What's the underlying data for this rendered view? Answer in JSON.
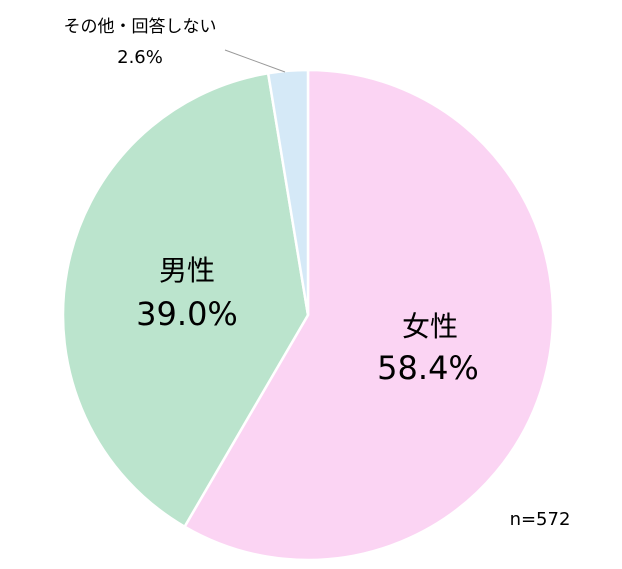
{
  "chart_data": {
    "type": "pie",
    "categories": [
      "女性",
      "男性",
      "その他・回答しない"
    ],
    "values": [
      58.4,
      39.0,
      2.6
    ],
    "value_labels": [
      "58.4%",
      "39.0%",
      "2.6%"
    ],
    "colors": [
      "#fbd4f3",
      "#bbe4cd",
      "#d5e9f7"
    ],
    "annotation": "n=572"
  }
}
